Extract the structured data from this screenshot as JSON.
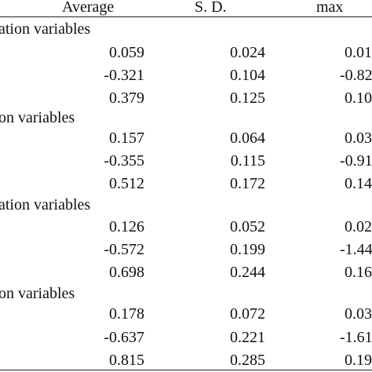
{
  "headers": [
    "Average",
    "S. D.",
    "max"
  ],
  "groups": [
    {
      "label": "ation variables",
      "rows": [
        [
          "0.059",
          "0.024",
          "0.01"
        ],
        [
          "-0.321",
          "0.104",
          "-0.82"
        ],
        [
          "0.379",
          "0.125",
          "0.10"
        ]
      ]
    },
    {
      "label": "on variables",
      "rows": [
        [
          "0.157",
          "0.064",
          "0.03"
        ],
        [
          "-0.355",
          "0.115",
          "-0.91"
        ],
        [
          "0.512",
          "0.172",
          "0.14"
        ]
      ]
    },
    {
      "label": "ation variables",
      "rows": [
        [
          "0.126",
          "0.052",
          "0.02"
        ],
        [
          "-0.572",
          "0.199",
          "-1.44"
        ],
        [
          "0.698",
          "0.244",
          "0.16"
        ]
      ]
    },
    {
      "label": "on variables",
      "rows": [
        [
          "0.178",
          "0.072",
          "0.03"
        ],
        [
          "-0.637",
          "0.221",
          "-1.61"
        ],
        [
          "0.815",
          "0.285",
          "0.19"
        ]
      ]
    }
  ]
}
